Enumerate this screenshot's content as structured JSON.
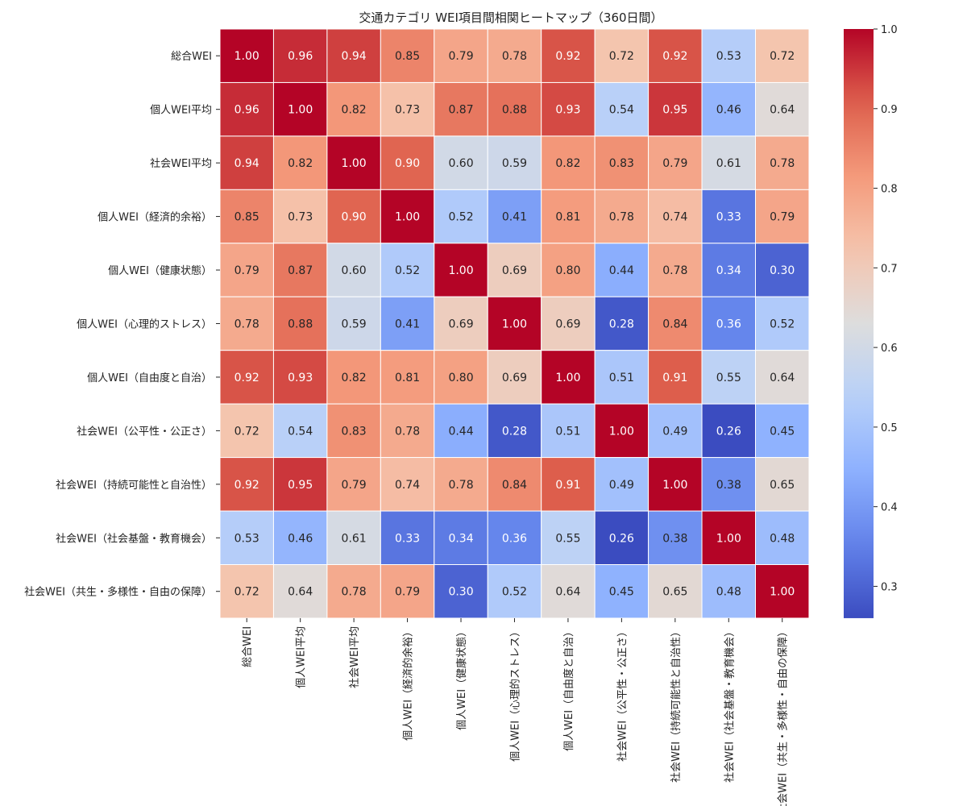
{
  "chart_data": {
    "type": "heatmap",
    "title": "交通カテゴリ WEI項目間相関ヒートマップ（360日間）",
    "labels": [
      "総合WEI",
      "個人WEI平均",
      "社会WEI平均",
      "個人WEI（経済的余裕）",
      "個人WEI（健康状態）",
      "個人WEI（心理的ストレス）",
      "個人WEI（自由度と自治）",
      "社会WEI（公平性・公正さ）",
      "社会WEI（持続可能性と自治性）",
      "社会WEI（社会基盤・教育機会）",
      "社会WEI（共生・多様性・自由の保障）"
    ],
    "matrix": [
      [
        1.0,
        0.96,
        0.94,
        0.85,
        0.79,
        0.78,
        0.92,
        0.72,
        0.92,
        0.53,
        0.72
      ],
      [
        0.96,
        1.0,
        0.82,
        0.73,
        0.87,
        0.88,
        0.93,
        0.54,
        0.95,
        0.46,
        0.64
      ],
      [
        0.94,
        0.82,
        1.0,
        0.9,
        0.6,
        0.59,
        0.82,
        0.83,
        0.79,
        0.61,
        0.78
      ],
      [
        0.85,
        0.73,
        0.9,
        1.0,
        0.52,
        0.41,
        0.81,
        0.78,
        0.74,
        0.33,
        0.79
      ],
      [
        0.79,
        0.87,
        0.6,
        0.52,
        1.0,
        0.69,
        0.8,
        0.44,
        0.78,
        0.34,
        0.3
      ],
      [
        0.78,
        0.88,
        0.59,
        0.41,
        0.69,
        1.0,
        0.69,
        0.28,
        0.84,
        0.36,
        0.52
      ],
      [
        0.92,
        0.93,
        0.82,
        0.81,
        0.8,
        0.69,
        1.0,
        0.51,
        0.91,
        0.55,
        0.64
      ],
      [
        0.72,
        0.54,
        0.83,
        0.78,
        0.44,
        0.28,
        0.51,
        1.0,
        0.49,
        0.26,
        0.45
      ],
      [
        0.92,
        0.95,
        0.79,
        0.74,
        0.78,
        0.84,
        0.91,
        0.49,
        1.0,
        0.38,
        0.65
      ],
      [
        0.53,
        0.46,
        0.61,
        0.33,
        0.34,
        0.36,
        0.55,
        0.26,
        0.38,
        1.0,
        0.48
      ],
      [
        0.72,
        0.64,
        0.78,
        0.79,
        0.3,
        0.52,
        0.64,
        0.45,
        0.65,
        0.48,
        1.0
      ]
    ],
    "value_format": "0.00",
    "colormap": "coolwarm",
    "vmin": 0.26,
    "vmax": 1.0,
    "colorbar_ticks": [
      0.3,
      0.4,
      0.5,
      0.6,
      0.7,
      0.8,
      0.9,
      1.0
    ],
    "colorbar_tick_labels": [
      "0.3",
      "0.4",
      "0.5",
      "0.6",
      "0.7",
      "0.8",
      "0.9",
      "1.0"
    ]
  }
}
